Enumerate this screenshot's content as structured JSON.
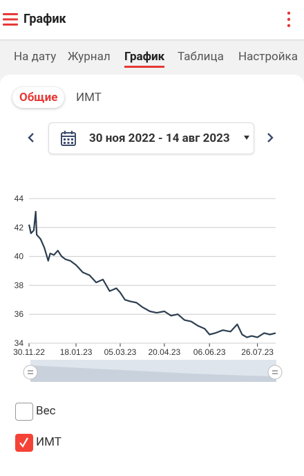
{
  "header": {
    "title": "График"
  },
  "tabs": [
    "На дату",
    "Журнал",
    "График",
    "Таблица",
    "Настройка"
  ],
  "active_tab": 2,
  "subtabs": [
    "Общие",
    "ИМТ"
  ],
  "active_subtab": 0,
  "date_range": "30 ноя 2022 - 14 авг 2023",
  "chart_data": {
    "type": "line",
    "color": "#2c3e50",
    "x": [
      "2022-11-30",
      "2022-12-02",
      "2022-12-05",
      "2022-12-07",
      "2022-12-08",
      "2022-12-12",
      "2022-12-16",
      "2022-12-20",
      "2022-12-22",
      "2022-12-26",
      "2022-12-30",
      "2023-01-03",
      "2023-01-07",
      "2023-01-12",
      "2023-01-18",
      "2023-01-25",
      "2023-02-01",
      "2023-02-08",
      "2023-02-15",
      "2023-02-22",
      "2023-03-01",
      "2023-03-05",
      "2023-03-10",
      "2023-03-15",
      "2023-03-22",
      "2023-03-28",
      "2023-04-05",
      "2023-04-12",
      "2023-04-20",
      "2023-04-27",
      "2023-05-04",
      "2023-05-11",
      "2023-05-18",
      "2023-05-25",
      "2023-06-01",
      "2023-06-06",
      "2023-06-12",
      "2023-06-20",
      "2023-06-28",
      "2023-07-05",
      "2023-07-10",
      "2023-07-15",
      "2023-07-20",
      "2023-07-26",
      "2023-08-02",
      "2023-08-08",
      "2023-08-14"
    ],
    "values": [
      42.2,
      41.6,
      41.8,
      43.1,
      41.5,
      41.2,
      40.6,
      39.7,
      40.2,
      40.1,
      40.4,
      40.0,
      39.8,
      39.7,
      39.4,
      38.9,
      38.7,
      38.2,
      38.4,
      37.6,
      37.8,
      37.5,
      37.0,
      36.9,
      36.8,
      36.5,
      36.2,
      36.1,
      36.2,
      35.9,
      36.0,
      35.6,
      35.5,
      35.2,
      35.0,
      34.6,
      34.7,
      34.9,
      34.8,
      35.3,
      34.6,
      34.4,
      34.5,
      34.4,
      34.7,
      34.6,
      34.7
    ],
    "xlim": [
      "2022-11-30",
      "2023-08-14"
    ],
    "xticks": [
      {
        "value": "2022-11-30",
        "label": "30.11.22"
      },
      {
        "value": "2023-01-18",
        "label": "18.01.23"
      },
      {
        "value": "2023-03-05",
        "label": "05.03.23"
      },
      {
        "value": "2023-04-20",
        "label": "20.04.23"
      },
      {
        "value": "2023-06-06",
        "label": "06.06.23"
      },
      {
        "value": "2023-07-26",
        "label": "26.07.23"
      }
    ],
    "ylim": [
      34,
      44
    ],
    "yticks": [
      34,
      36,
      38,
      40,
      42,
      44
    ],
    "grid": true
  },
  "checkboxes": [
    {
      "label": "Вес",
      "checked": false
    },
    {
      "label": "ИМТ",
      "checked": true
    }
  ]
}
